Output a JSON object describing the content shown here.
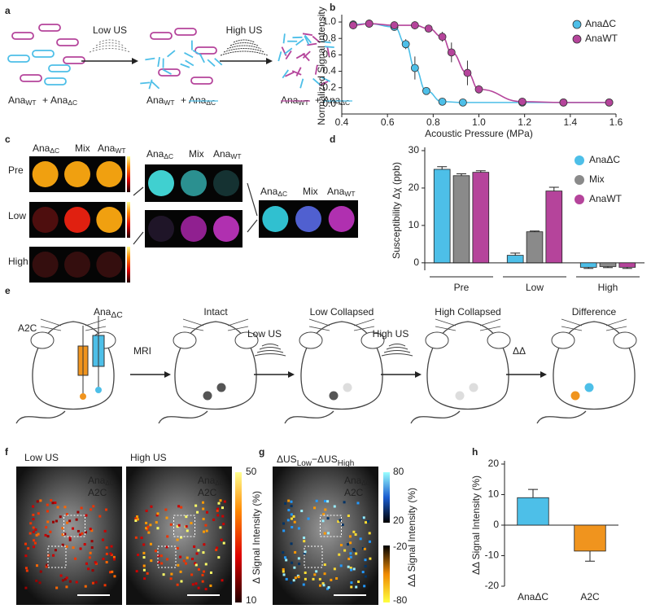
{
  "figure": {
    "panel_labels": [
      "a",
      "b",
      "c",
      "d",
      "e",
      "f",
      "g",
      "h"
    ],
    "names": {
      "ana_dc": [
        "Ana",
        "ΔC"
      ],
      "ana_wt": [
        "Ana",
        "WT"
      ],
      "mix": "Mix",
      "a2c": "A2C"
    },
    "a": {
      "low_us": "Low US",
      "high_us": "High US",
      "plus": "+"
    },
    "c": {
      "rows": [
        "Pre",
        "Low",
        "High"
      ]
    },
    "e": {
      "stages": [
        "Intact",
        "Low Collapsed",
        "High Collapsed",
        "Difference"
      ],
      "steps": [
        "MRI",
        "Low US",
        "High US",
        "ΔΔ"
      ]
    },
    "f": {
      "titles": [
        "Low US",
        "High US"
      ],
      "colorbar_label": "Δ Signal Intensity (%)",
      "colorbar_ticks": [
        "50",
        "10"
      ]
    },
    "g": {
      "title_parts": [
        "ΔUS",
        "Low",
        "−ΔUS",
        "High"
      ],
      "colorbar_label": "ΔΔ Signal Intensity (%)",
      "colorbar_ticks": [
        "80",
        "20",
        "-20",
        "-80"
      ]
    }
  },
  "chart_data": [
    {
      "type": "line",
      "xlabel": "Acoustic Pressure (MPa)",
      "ylabel": "Normalized Signal Intensity",
      "xlim": [
        0.4,
        1.6
      ],
      "xticks": [
        0.4,
        0.6,
        0.8,
        {
          "value": 1,
          "label": "1.0"
        },
        1.2,
        1.4,
        1.6
      ],
      "ylim": [
        -0.12,
        1.05
      ],
      "yticks": [
        {
          "value": 0,
          "label": "0.0"
        },
        0.2,
        0.4,
        0.6,
        0.8,
        {
          "value": 1,
          "label": "1.0"
        }
      ],
      "legend": "upper right",
      "series": [
        {
          "name": "AnaΔC",
          "color": "#4dbfe8",
          "x": [
            0.45,
            0.52,
            0.63,
            0.68,
            0.72,
            0.77,
            0.84,
            0.93,
            1.19,
            1.37,
            1.57
          ],
          "values": [
            0.97,
            0.98,
            0.94,
            0.73,
            0.44,
            0.16,
            0.03,
            0.02,
            0.02,
            0.02,
            0.02
          ],
          "errors": [
            null,
            null,
            null,
            0.06,
            0.14,
            null,
            null,
            null,
            null,
            null,
            null
          ]
        },
        {
          "name": "AnaWT",
          "color": "#b5449b",
          "x": [
            0.45,
            0.52,
            0.63,
            0.72,
            0.78,
            0.84,
            0.88,
            0.95,
            1.0,
            1.19,
            1.37,
            1.57
          ],
          "values": [
            0.96,
            0.98,
            0.96,
            0.96,
            0.92,
            0.82,
            0.63,
            0.38,
            0.18,
            0.03,
            0.02,
            0.02
          ],
          "errors": [
            null,
            null,
            null,
            null,
            null,
            0.06,
            0.12,
            0.15,
            0.05,
            null,
            null,
            null
          ]
        }
      ]
    },
    {
      "type": "bar",
      "ylabel": "Susceptibility Δχ (ppb)",
      "categories": [
        "Pre",
        "Low",
        "High"
      ],
      "ylim": [
        -2,
        30
      ],
      "yticks": [
        0,
        10,
        20,
        30
      ],
      "legend": "upper right",
      "series": [
        {
          "name": "AnaΔC",
          "color": "#4dbfe8",
          "values": [
            25,
            2,
            -1.2
          ],
          "errors": [
            0.7,
            0.6,
            0.3
          ]
        },
        {
          "name": "Mix",
          "color": "#8a8a8a",
          "values": [
            23.3,
            8.3,
            -1.0
          ],
          "errors": [
            0.5,
            0.2,
            0.3
          ]
        },
        {
          "name": "AnaWT",
          "color": "#b5449b",
          "values": [
            24.2,
            19.2,
            -1.2
          ],
          "errors": [
            0.4,
            1.0,
            0.3
          ]
        }
      ]
    },
    {
      "type": "bar",
      "ylabel": "ΔΔ Signal Intensity (%)",
      "categories": [
        "AnaΔC",
        "A2C"
      ],
      "values": [
        9,
        -8.5
      ],
      "errors": [
        2.7,
        3.3
      ],
      "colors": [
        "#4dbfe8",
        "#f0941e"
      ],
      "ylim": [
        -20,
        20
      ],
      "yticks": [
        -20,
        -10,
        0,
        10,
        20
      ]
    }
  ]
}
